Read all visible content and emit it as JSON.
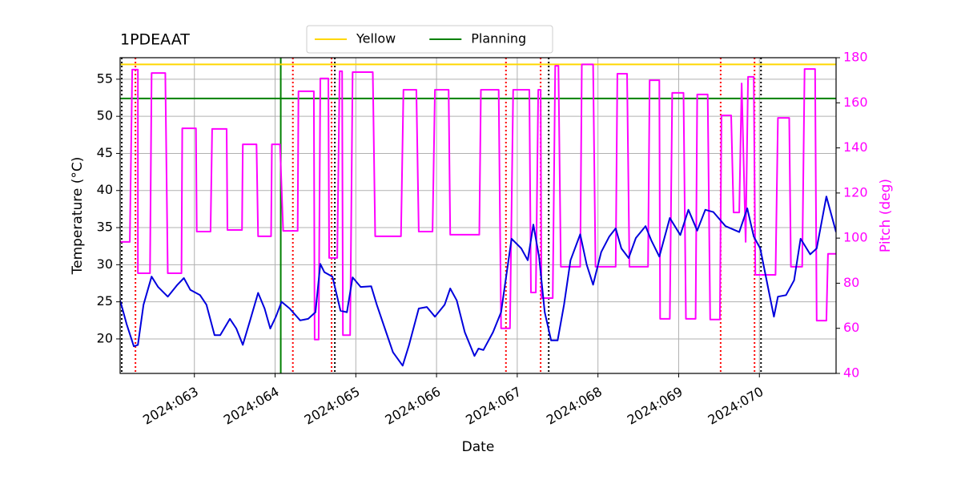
{
  "chart_data": {
    "type": "line",
    "title": "1PDEAAT",
    "xlabel": "Date",
    "ylabel": "Temperature (°C)",
    "y2label": "Pitch (deg)",
    "y2color": "#ff00ff",
    "grid": true,
    "legend": "top",
    "xlim": [
      62.08,
      70.95
    ],
    "xticks": [
      {
        "value": 63,
        "label": "2024:063"
      },
      {
        "value": 64,
        "label": "2024:064"
      },
      {
        "value": 65,
        "label": "2024:065"
      },
      {
        "value": 66,
        "label": "2024:066"
      },
      {
        "value": 67,
        "label": "2024:067"
      },
      {
        "value": 68,
        "label": "2024:068"
      },
      {
        "value": 69,
        "label": "2024:069"
      },
      {
        "value": 70,
        "label": "2024:070"
      }
    ],
    "ylim": [
      15.35,
      57.9
    ],
    "yticks": [
      20,
      25,
      30,
      35,
      40,
      45,
      50,
      55
    ],
    "y2lim": [
      40,
      180
    ],
    "y2ticks": [
      40,
      60,
      80,
      100,
      120,
      140,
      160,
      180
    ],
    "hlines": [
      {
        "name": "Yellow",
        "color": "#ffd700",
        "value": 57
      },
      {
        "name": "Planning",
        "color": "#008000",
        "value": 52.4
      }
    ],
    "vlines": [
      {
        "color": "#008000",
        "style": "solid",
        "value": 64.07
      },
      {
        "color": "#000000",
        "style": "dotted",
        "value": 62.1
      },
      {
        "color": "#000000",
        "style": "dotted",
        "value": 64.74
      },
      {
        "color": "#000000",
        "style": "dotted",
        "value": 67.39
      },
      {
        "color": "#000000",
        "style": "dotted",
        "value": 70.02
      },
      {
        "color": "#ff0000",
        "style": "dotted",
        "value": 62.27
      },
      {
        "color": "#ff0000",
        "style": "dotted",
        "value": 64.22
      },
      {
        "color": "#ff0000",
        "style": "dotted",
        "value": 64.7
      },
      {
        "color": "#ff0000",
        "style": "dotted",
        "value": 66.86
      },
      {
        "color": "#ff0000",
        "style": "dotted",
        "value": 67.29
      },
      {
        "color": "#ff0000",
        "style": "dotted",
        "value": 69.52
      },
      {
        "color": "#ff0000",
        "style": "dotted",
        "value": 69.94
      }
    ],
    "series": [
      {
        "color": "#ff00ff",
        "axis": "y2",
        "x": [
          62.08,
          62.2,
          62.23,
          62.3,
          62.3,
          62.45,
          62.47,
          62.64,
          62.67,
          62.84,
          62.85,
          63.02,
          63.03,
          63.2,
          63.22,
          63.4,
          63.41,
          63.59,
          63.6,
          63.77,
          63.79,
          63.95,
          63.96,
          64.06,
          64.1,
          64.28,
          64.29,
          64.48,
          64.49,
          64.54,
          64.56,
          64.66,
          64.67,
          64.77,
          64.8,
          64.83,
          64.84,
          64.93,
          64.96,
          65.21,
          65.24,
          65.56,
          65.59,
          65.75,
          65.78,
          65.95,
          65.98,
          66.15,
          66.17,
          66.53,
          66.55,
          66.77,
          66.8,
          66.91,
          66.95,
          67.15,
          67.17,
          67.23,
          67.26,
          67.29,
          67.3,
          67.44,
          67.47,
          67.51,
          67.54,
          67.78,
          67.8,
          67.94,
          67.97,
          68.22,
          68.24,
          68.36,
          68.39,
          68.62,
          68.64,
          68.76,
          68.77,
          68.89,
          68.92,
          69.06,
          69.09,
          69.21,
          69.23,
          69.36,
          69.39,
          69.51,
          69.53,
          69.65,
          69.68,
          69.75,
          69.78,
          69.83,
          69.86,
          69.93,
          69.95,
          70.2,
          70.23,
          70.37,
          70.39,
          70.53,
          70.56,
          70.69,
          70.71,
          70.83,
          70.85,
          70.95
        ],
        "values": [
          98.3,
          98.3,
          174.7,
          174.7,
          84.4,
          84.4,
          173.2,
          173.2,
          84.4,
          84.4,
          148.7,
          148.7,
          102.9,
          102.9,
          148.4,
          148.4,
          103.6,
          103.6,
          141.6,
          141.6,
          100.8,
          100.8,
          141.6,
          141.6,
          103.2,
          103.2,
          165.1,
          165.1,
          55,
          55,
          170.8,
          170.8,
          91.2,
          91.2,
          174,
          174,
          57,
          57,
          173.6,
          173.6,
          100.8,
          100.8,
          165.8,
          165.8,
          102.9,
          102.9,
          165.8,
          165.8,
          101.5,
          101.5,
          165.8,
          165.8,
          60,
          60,
          165.8,
          165.8,
          75.9,
          75.9,
          165.8,
          165.8,
          73.4,
          73.4,
          176.4,
          176.4,
          87.3,
          87.3,
          177,
          177,
          87.3,
          87.3,
          172.9,
          172.9,
          87.3,
          87.3,
          170,
          170,
          64.2,
          64.2,
          164.4,
          164.4,
          64.2,
          64.2,
          163.7,
          163.7,
          63.9,
          63.9,
          154.4,
          154.4,
          111.4,
          111.4,
          168.6,
          98.3,
          171.5,
          171.5,
          83.7,
          83.7,
          153.3,
          153.3,
          87.3,
          87.3,
          175,
          175,
          63.4,
          63.4,
          93,
          93
        ]
      },
      {
        "color": "#0000dd",
        "axis": "y",
        "x": [
          62.08,
          62.16,
          62.25,
          62.3,
          62.37,
          62.47,
          62.55,
          62.67,
          62.79,
          62.87,
          62.95,
          63.07,
          63.15,
          63.25,
          63.32,
          63.44,
          63.52,
          63.6,
          63.69,
          63.79,
          63.87,
          63.94,
          64.01,
          64.08,
          64.18,
          64.31,
          64.41,
          64.5,
          64.56,
          64.61,
          64.71,
          64.81,
          64.89,
          64.96,
          65.06,
          65.19,
          65.26,
          65.36,
          65.46,
          65.58,
          65.66,
          65.78,
          65.88,
          65.98,
          66.1,
          66.17,
          66.25,
          66.35,
          66.47,
          66.52,
          66.58,
          66.7,
          66.8,
          66.93,
          67.05,
          67.13,
          67.2,
          67.27,
          67.34,
          67.42,
          67.5,
          67.58,
          67.66,
          67.78,
          67.86,
          67.94,
          68.04,
          68.14,
          68.22,
          68.29,
          68.38,
          68.47,
          68.59,
          68.66,
          68.76,
          68.89,
          69.02,
          69.12,
          69.23,
          69.33,
          69.43,
          69.58,
          69.75,
          69.85,
          69.93,
          70.01,
          70.11,
          70.18,
          70.23,
          70.33,
          70.43,
          70.51,
          70.63,
          70.71,
          70.83,
          70.95
        ],
        "values": [
          25.2,
          22,
          19,
          19.2,
          24.6,
          28.4,
          27,
          25.7,
          27.3,
          28.2,
          26.6,
          25.9,
          24.6,
          20.5,
          20.5,
          22.7,
          21.4,
          19.2,
          22.5,
          26.2,
          24.1,
          21.4,
          23,
          25,
          24.1,
          22.5,
          22.7,
          23.6,
          30.1,
          29,
          28.4,
          23.8,
          23.6,
          28.3,
          27,
          27.1,
          24.6,
          21.4,
          18.2,
          16.4,
          19.2,
          24.1,
          24.3,
          23,
          24.6,
          26.8,
          25.2,
          20.9,
          17.7,
          18.7,
          18.5,
          20.9,
          23.6,
          33.5,
          32.2,
          30.6,
          35.4,
          31.1,
          23.6,
          19.8,
          19.8,
          24.6,
          30.6,
          34.1,
          30,
          27.3,
          31.7,
          33.8,
          34.9,
          32.2,
          30.9,
          33.6,
          35.2,
          33.3,
          31.1,
          36.3,
          34,
          37.4,
          34.6,
          37.4,
          37.1,
          35.2,
          34.4,
          37.6,
          33.8,
          32.2,
          26.8,
          23,
          25.7,
          25.9,
          27.9,
          33.5,
          31.4,
          32.2,
          39.2,
          34.4
        ]
      }
    ]
  }
}
